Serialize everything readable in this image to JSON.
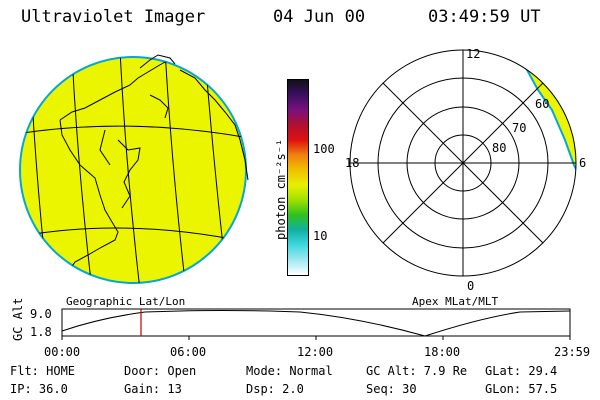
{
  "header": {
    "title": "Ultraviolet Imager",
    "date": "04 Jun 00",
    "time": "03:49:59 UT"
  },
  "colorbar": {
    "unit_label": "photon cm⁻²s⁻¹",
    "ticks": [
      "100",
      "10"
    ],
    "gradient_colors": [
      "#101018",
      "#3a1060",
      "#7a1080",
      "#b01030",
      "#e01010",
      "#f08010",
      "#f0c000",
      "#e8f000",
      "#a0e000",
      "#30c020",
      "#10b0a0",
      "#40d8e0",
      "#a0e8f0",
      "#ffffff"
    ]
  },
  "map_left": {
    "label": "Geographic Lat/Lon",
    "fill_color": "#ecf500",
    "edge_color": "#00a8d8"
  },
  "map_right": {
    "label": "Apex MLat/MLT",
    "mlt_labels": [
      "12",
      "18",
      "6",
      "0"
    ],
    "lat_labels": [
      "60",
      "70",
      "80"
    ]
  },
  "timeline": {
    "axis_title": "GC Alt",
    "y_labels": [
      "9.0",
      "1.8"
    ],
    "x_labels": [
      "00:00",
      "06:00",
      "12:00",
      "18:00",
      "23:59"
    ],
    "marker_color": "#c00000"
  },
  "status": {
    "row1": {
      "flt": "Flt: HOME",
      "door": "Door: Open",
      "mode": "Mode: Normal",
      "gcalt": "GC Alt: 7.9 Re",
      "glat": "GLat:  29.4"
    },
    "row2": {
      "ip": "IP: 36.0",
      "gain": "Gain: 13",
      "dsp": "Dsp:    2.0",
      "seq": "Seq: 30",
      "glon": "GLon:  57.5"
    }
  }
}
